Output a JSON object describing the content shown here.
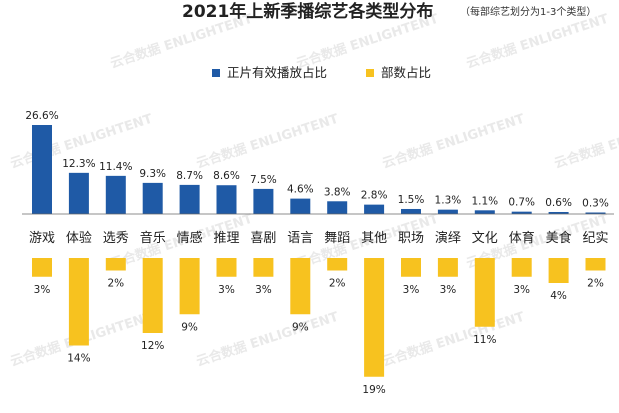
{
  "chart_data": {
    "type": "bar",
    "title": "2021年上新季播综艺各类型分布",
    "subtitle": "（每部综艺划分为1-3个类型）",
    "categories": [
      "游戏",
      "体验",
      "选秀",
      "音乐",
      "情感",
      "推理",
      "喜剧",
      "语言",
      "舞蹈",
      "其他",
      "职场",
      "演绎",
      "文化",
      "体育",
      "美食",
      "纪实"
    ],
    "series": [
      {
        "name": "正片有效播放占比",
        "color": "#1F5AA6",
        "direction": "up",
        "values": [
          26.6,
          12.3,
          11.4,
          9.3,
          8.7,
          8.6,
          7.5,
          4.6,
          3.8,
          2.8,
          1.5,
          1.3,
          1.1,
          0.7,
          0.6,
          0.3
        ],
        "labels": [
          "26.6%",
          "12.3%",
          "11.4%",
          "9.3%",
          "8.7%",
          "8.6%",
          "7.5%",
          "4.6%",
          "3.8%",
          "2.8%",
          "1.5%",
          "1.3%",
          "1.1%",
          "0.7%",
          "0.6%",
          "0.3%"
        ]
      },
      {
        "name": "部数占比",
        "color": "#F7C21F",
        "direction": "down",
        "values": [
          3,
          14,
          2,
          12,
          9,
          3,
          3,
          9,
          2,
          19,
          3,
          3,
          11,
          3,
          4,
          2
        ],
        "labels": [
          "3%",
          "14%",
          "2%",
          "12%",
          "9%",
          "3%",
          "3%",
          "9%",
          "2%",
          "19%",
          "3%",
          "3%",
          "11%",
          "3%",
          "4%",
          "2%"
        ]
      }
    ],
    "legend_position": "top-center",
    "watermark": "云合数据 ENLIGHTENT"
  }
}
